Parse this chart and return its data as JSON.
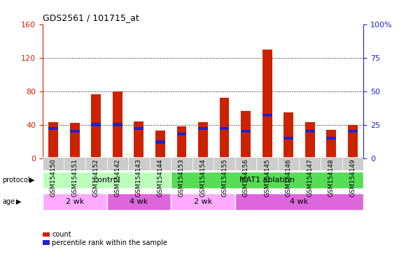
{
  "title": "GDS2561 / 101715_at",
  "samples": [
    "GSM154150",
    "GSM154151",
    "GSM154152",
    "GSM154142",
    "GSM154143",
    "GSM154144",
    "GSM154153",
    "GSM154154",
    "GSM154155",
    "GSM154156",
    "GSM154145",
    "GSM154146",
    "GSM154147",
    "GSM154148",
    "GSM154149"
  ],
  "counts": [
    43,
    42,
    76,
    80,
    44,
    33,
    38,
    43,
    72,
    56,
    130,
    55,
    43,
    34,
    40
  ],
  "pct_ranks": [
    22,
    20,
    25,
    25,
    22,
    12,
    18,
    22,
    22,
    20,
    32,
    15,
    20,
    15,
    20
  ],
  "ylim_left": [
    0,
    160
  ],
  "ylim_right": [
    0,
    100
  ],
  "yticks_left": [
    0,
    40,
    80,
    120,
    160
  ],
  "yticks_right": [
    0,
    25,
    50,
    75,
    100
  ],
  "yticklabels_right": [
    "0",
    "25",
    "50",
    "75",
    "100%"
  ],
  "bar_color": "#cc2200",
  "pct_color": "#2222cc",
  "bar_width": 0.45,
  "title_fontsize": 9,
  "tick_label_fontsize": 6.5,
  "ylabel_left_color": "#cc2200",
  "ylabel_right_color": "#2222cc",
  "grid_yticks": [
    40,
    80,
    120
  ],
  "protocol_groups": [
    {
      "label": "control",
      "start": 0,
      "end": 6,
      "color": "#bbffbb"
    },
    {
      "label": "MAT1 ablation",
      "start": 6,
      "end": 15,
      "color": "#55dd55"
    }
  ],
  "age_groups": [
    {
      "label": "2 wk",
      "start": 0,
      "end": 3,
      "color": "#ffaaff"
    },
    {
      "label": "4 wk",
      "start": 3,
      "end": 6,
      "color": "#dd66dd"
    },
    {
      "label": "2 wk",
      "start": 6,
      "end": 9,
      "color": "#ffaaff"
    },
    {
      "label": "4 wk",
      "start": 9,
      "end": 15,
      "color": "#dd66dd"
    }
  ],
  "legend_count_label": "count",
  "legend_pct_label": "percentile rank within the sample",
  "xtick_bg_color": "#cccccc"
}
